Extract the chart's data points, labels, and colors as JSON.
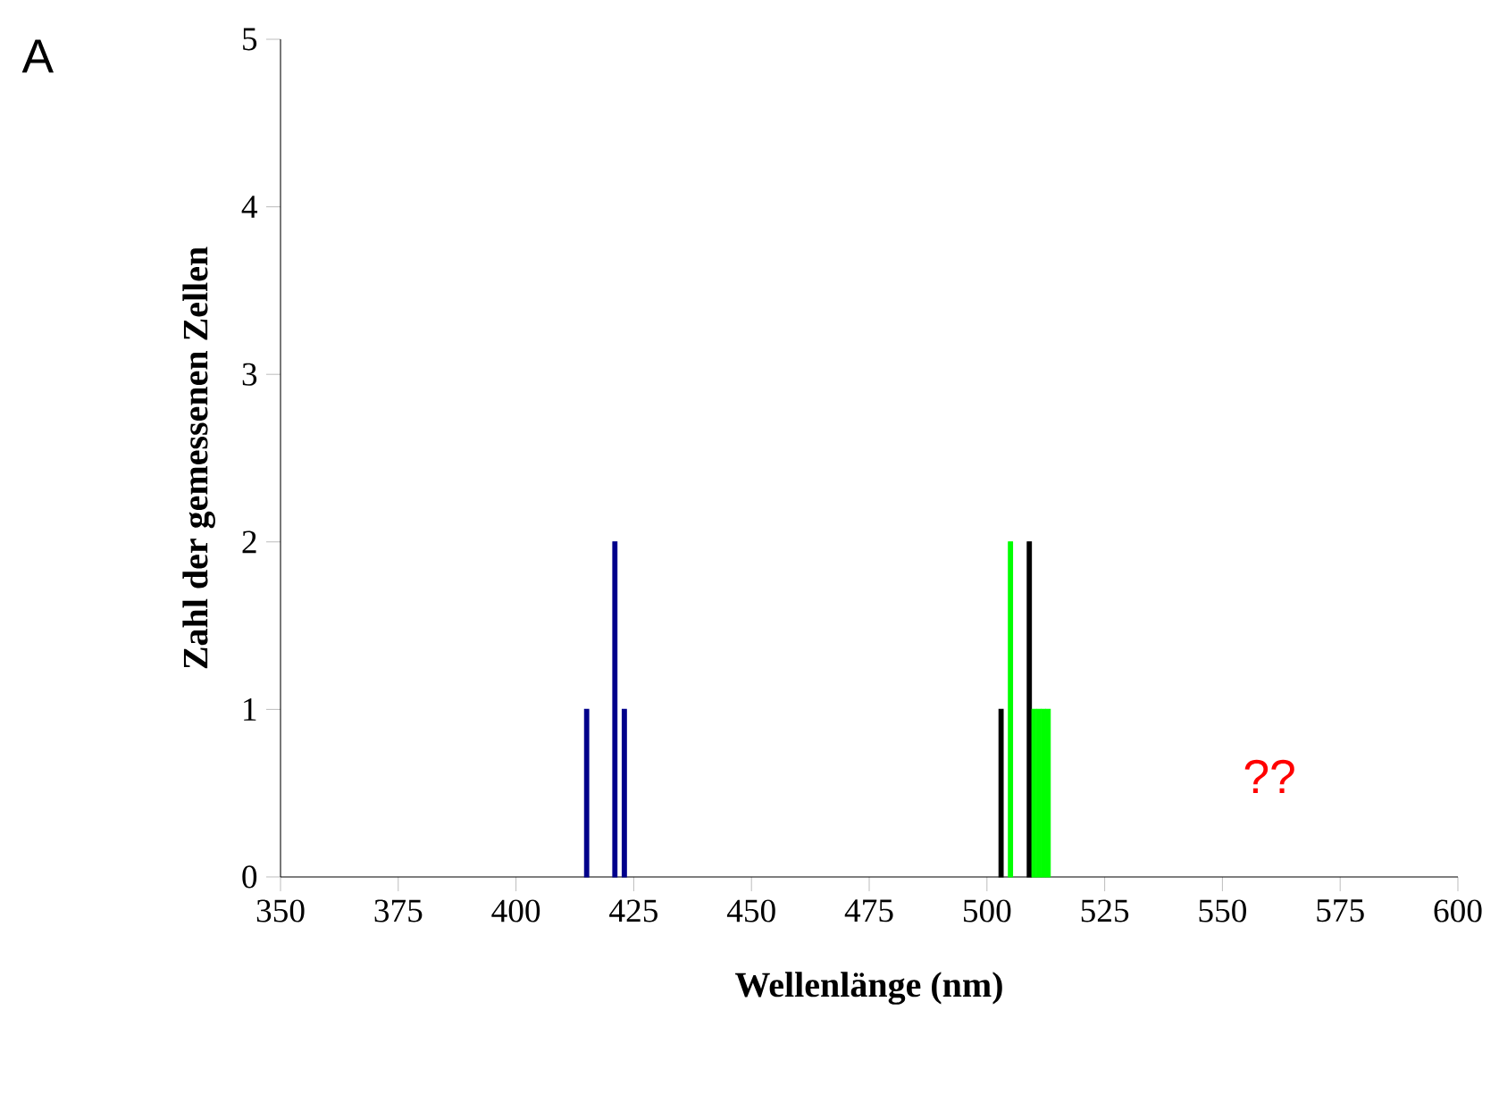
{
  "chart_data": {
    "type": "bar",
    "title": "A",
    "xlabel": "Wellenlänge (nm)",
    "ylabel": "Zahl der gemessenen Zellen",
    "series": [
      {
        "color": "#00008b",
        "x": [
          415,
          421,
          423
        ],
        "values": [
          1,
          2,
          1
        ]
      },
      {
        "color": "#000000",
        "x": [
          503,
          509
        ],
        "values": [
          1,
          2
        ]
      },
      {
        "color": "#00ff00",
        "x": [
          505,
          510,
          511,
          512,
          513
        ],
        "values": [
          2,
          1,
          1,
          1,
          1
        ]
      }
    ],
    "xlim": [
      350,
      600
    ],
    "xticks": [
      350,
      375,
      400,
      425,
      450,
      475,
      500,
      525,
      550,
      575,
      600
    ],
    "ylim": [
      0,
      5
    ],
    "yticks": [
      0,
      1,
      2,
      3,
      4,
      5
    ],
    "annotations": [
      "??"
    ],
    "grid": false
  }
}
